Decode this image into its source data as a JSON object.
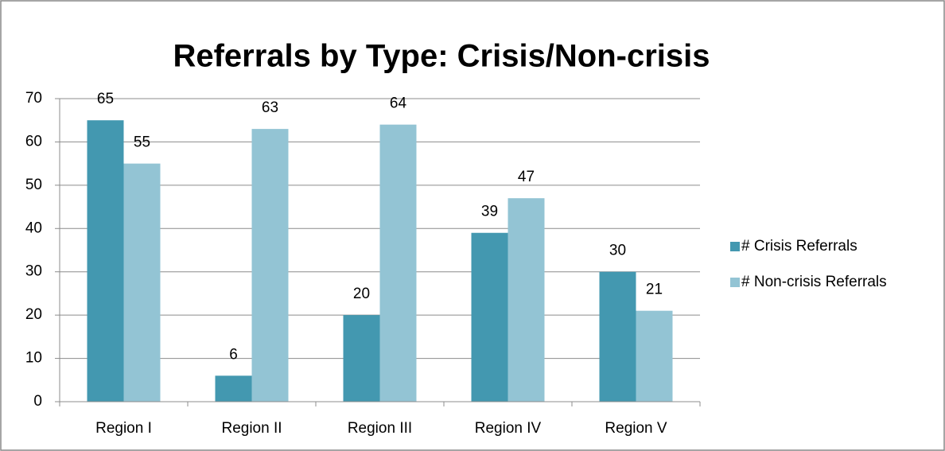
{
  "chart_data": {
    "type": "bar",
    "title": "Referrals by Type: Crisis/Non-crisis",
    "categories": [
      "Region I",
      "Region II",
      "Region III",
      "Region IV",
      "Region V"
    ],
    "series": [
      {
        "name": "# Crisis Referrals",
        "color": "#4398b0",
        "values": [
          65,
          6,
          20,
          39,
          30
        ]
      },
      {
        "name": "# Non-crisis Referrals",
        "color": "#93c4d4",
        "values": [
          55,
          63,
          64,
          47,
          21
        ]
      }
    ],
    "ylim": [
      0,
      70
    ],
    "yticks": [
      0,
      10,
      20,
      30,
      40,
      50,
      60,
      70
    ],
    "grid": true,
    "legend": "right",
    "data_labels": true
  }
}
